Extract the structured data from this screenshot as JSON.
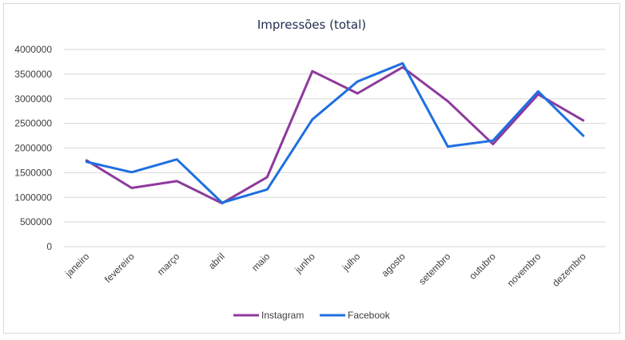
{
  "chart_data": {
    "type": "line",
    "title": "Impressões (total)",
    "xlabel": "",
    "ylabel": "",
    "categories": [
      "janeiro",
      "fevereiro",
      "março",
      "abril",
      "maio",
      "junho",
      "julho",
      "agosto",
      "setembro",
      "outubro",
      "novembro",
      "dezembro"
    ],
    "series": [
      {
        "name": "Instagram",
        "color": "#8e3a9c",
        "values": [
          1750000,
          1190000,
          1330000,
          880000,
          1410000,
          3560000,
          3110000,
          3640000,
          2950000,
          2080000,
          3090000,
          2560000
        ]
      },
      {
        "name": "Facebook",
        "color": "#1f6fe0",
        "values": [
          1720000,
          1510000,
          1770000,
          890000,
          1160000,
          2580000,
          3350000,
          3720000,
          2030000,
          2150000,
          3150000,
          2250000
        ]
      }
    ],
    "ylim": [
      0,
      4000000
    ],
    "yticks": [
      "0",
      "500000",
      "1000000",
      "1500000",
      "2000000",
      "2500000",
      "3000000",
      "3500000",
      "4000000"
    ],
    "grid": true,
    "legend": "bottom"
  }
}
